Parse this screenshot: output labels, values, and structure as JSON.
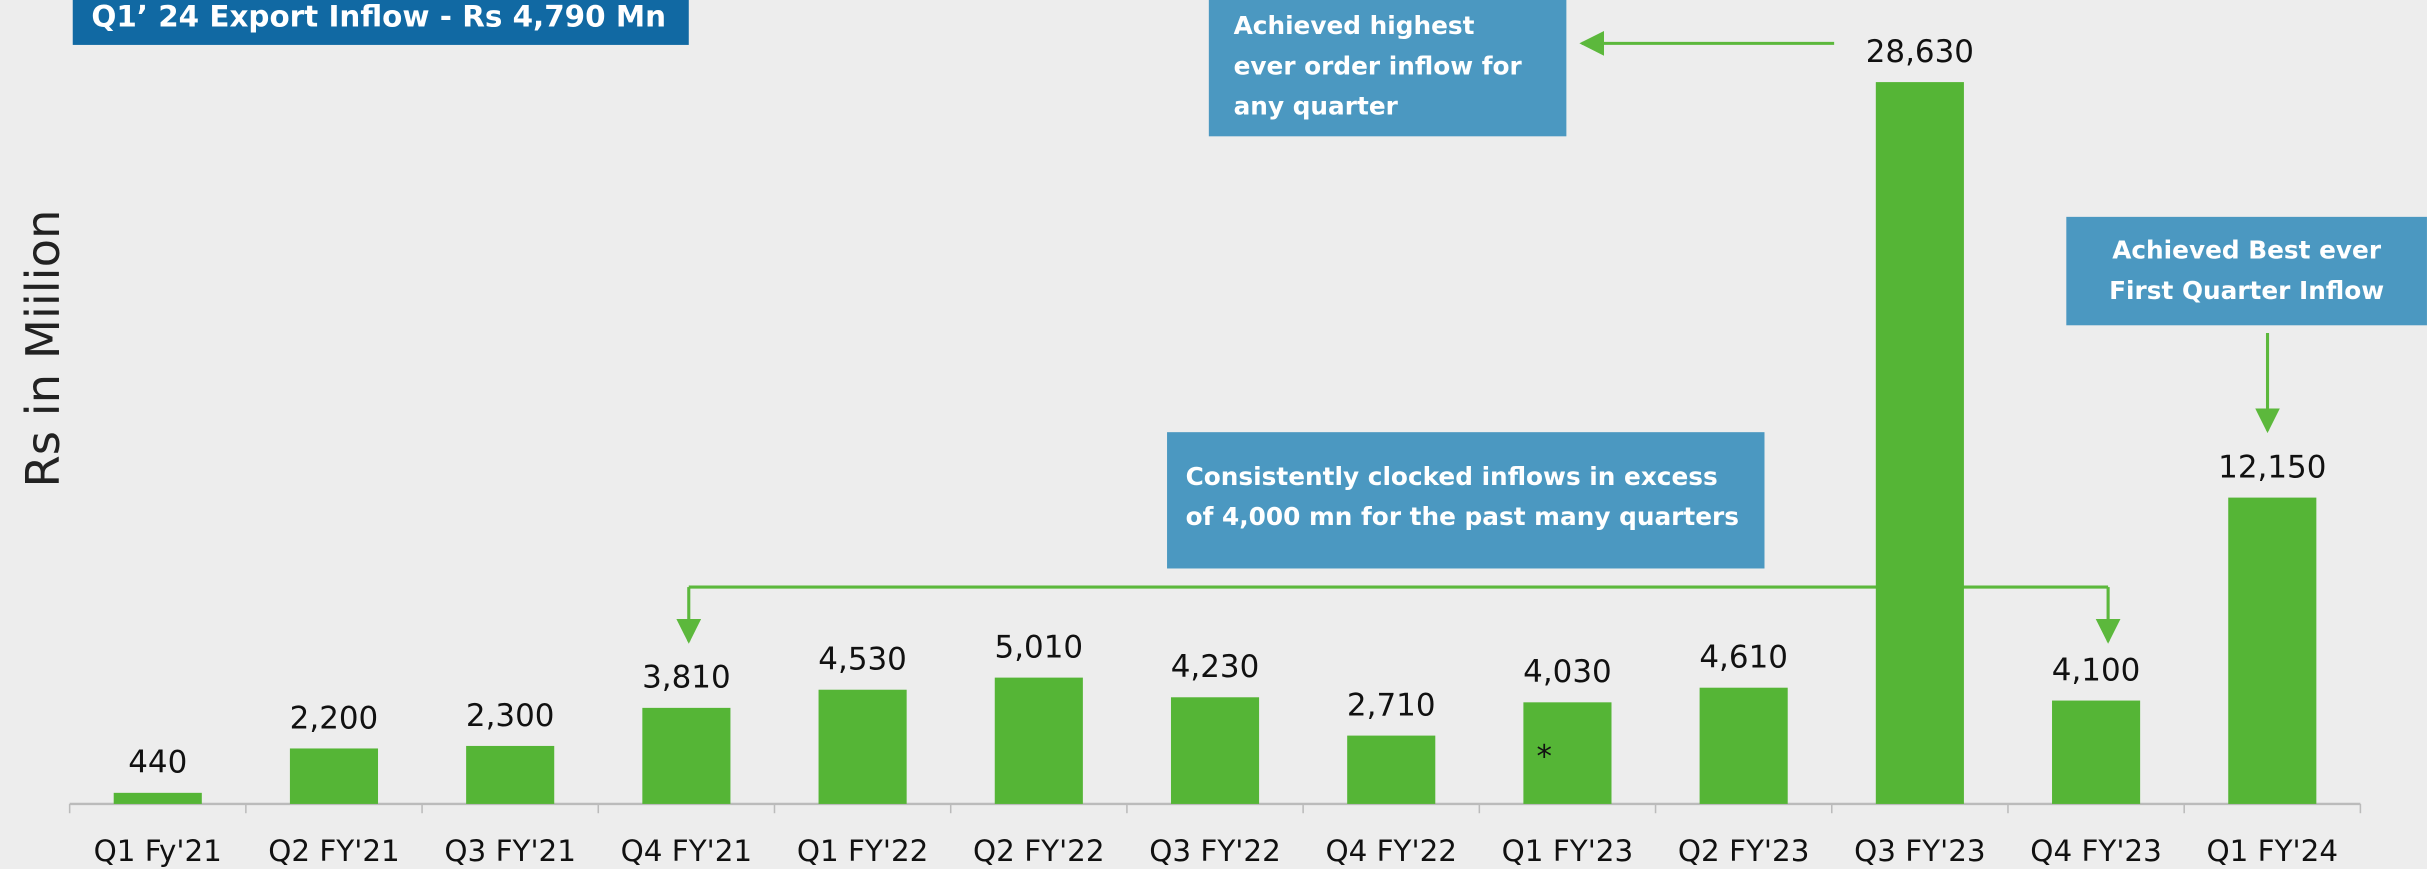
{
  "chart_data": {
    "type": "bar",
    "title": "Q1’ 24 Export Inflow  -  Rs 4,790 Mn",
    "y_label": "Rs in Miilion",
    "categories": [
      "Q1 Fy'21",
      "Q2 FY'21",
      "Q3 FY'21",
      "Q4 FY'21",
      "Q1 FY'22",
      "Q2 FY'22",
      "Q3 FY'22",
      "Q4 FY'22",
      "Q1 FY'23",
      "Q2 FY'23",
      "Q3 FY'23",
      "Q4 FY'23",
      "Q1 FY'24"
    ],
    "values": [
      440,
      2200,
      2300,
      3810,
      4530,
      5010,
      4230,
      2710,
      4030,
      4610,
      28630,
      4100,
      12150
    ],
    "value_labels": [
      "440",
      "2,200",
      "2,300",
      "3,810",
      "4,530",
      "5,010",
      "4,230",
      "2,710",
      "4,030",
      "4,610",
      "28,630",
      "4,100",
      "12,150"
    ],
    "color": "#55b536",
    "annotations": [
      "Achieved highest ever order inflow for any quarter",
      "Achieved Best ever First Quarter Inflow",
      "Consistently clocked  inflows in excess of 4,000 mn for the past many  quarters",
      "*"
    ]
  }
}
